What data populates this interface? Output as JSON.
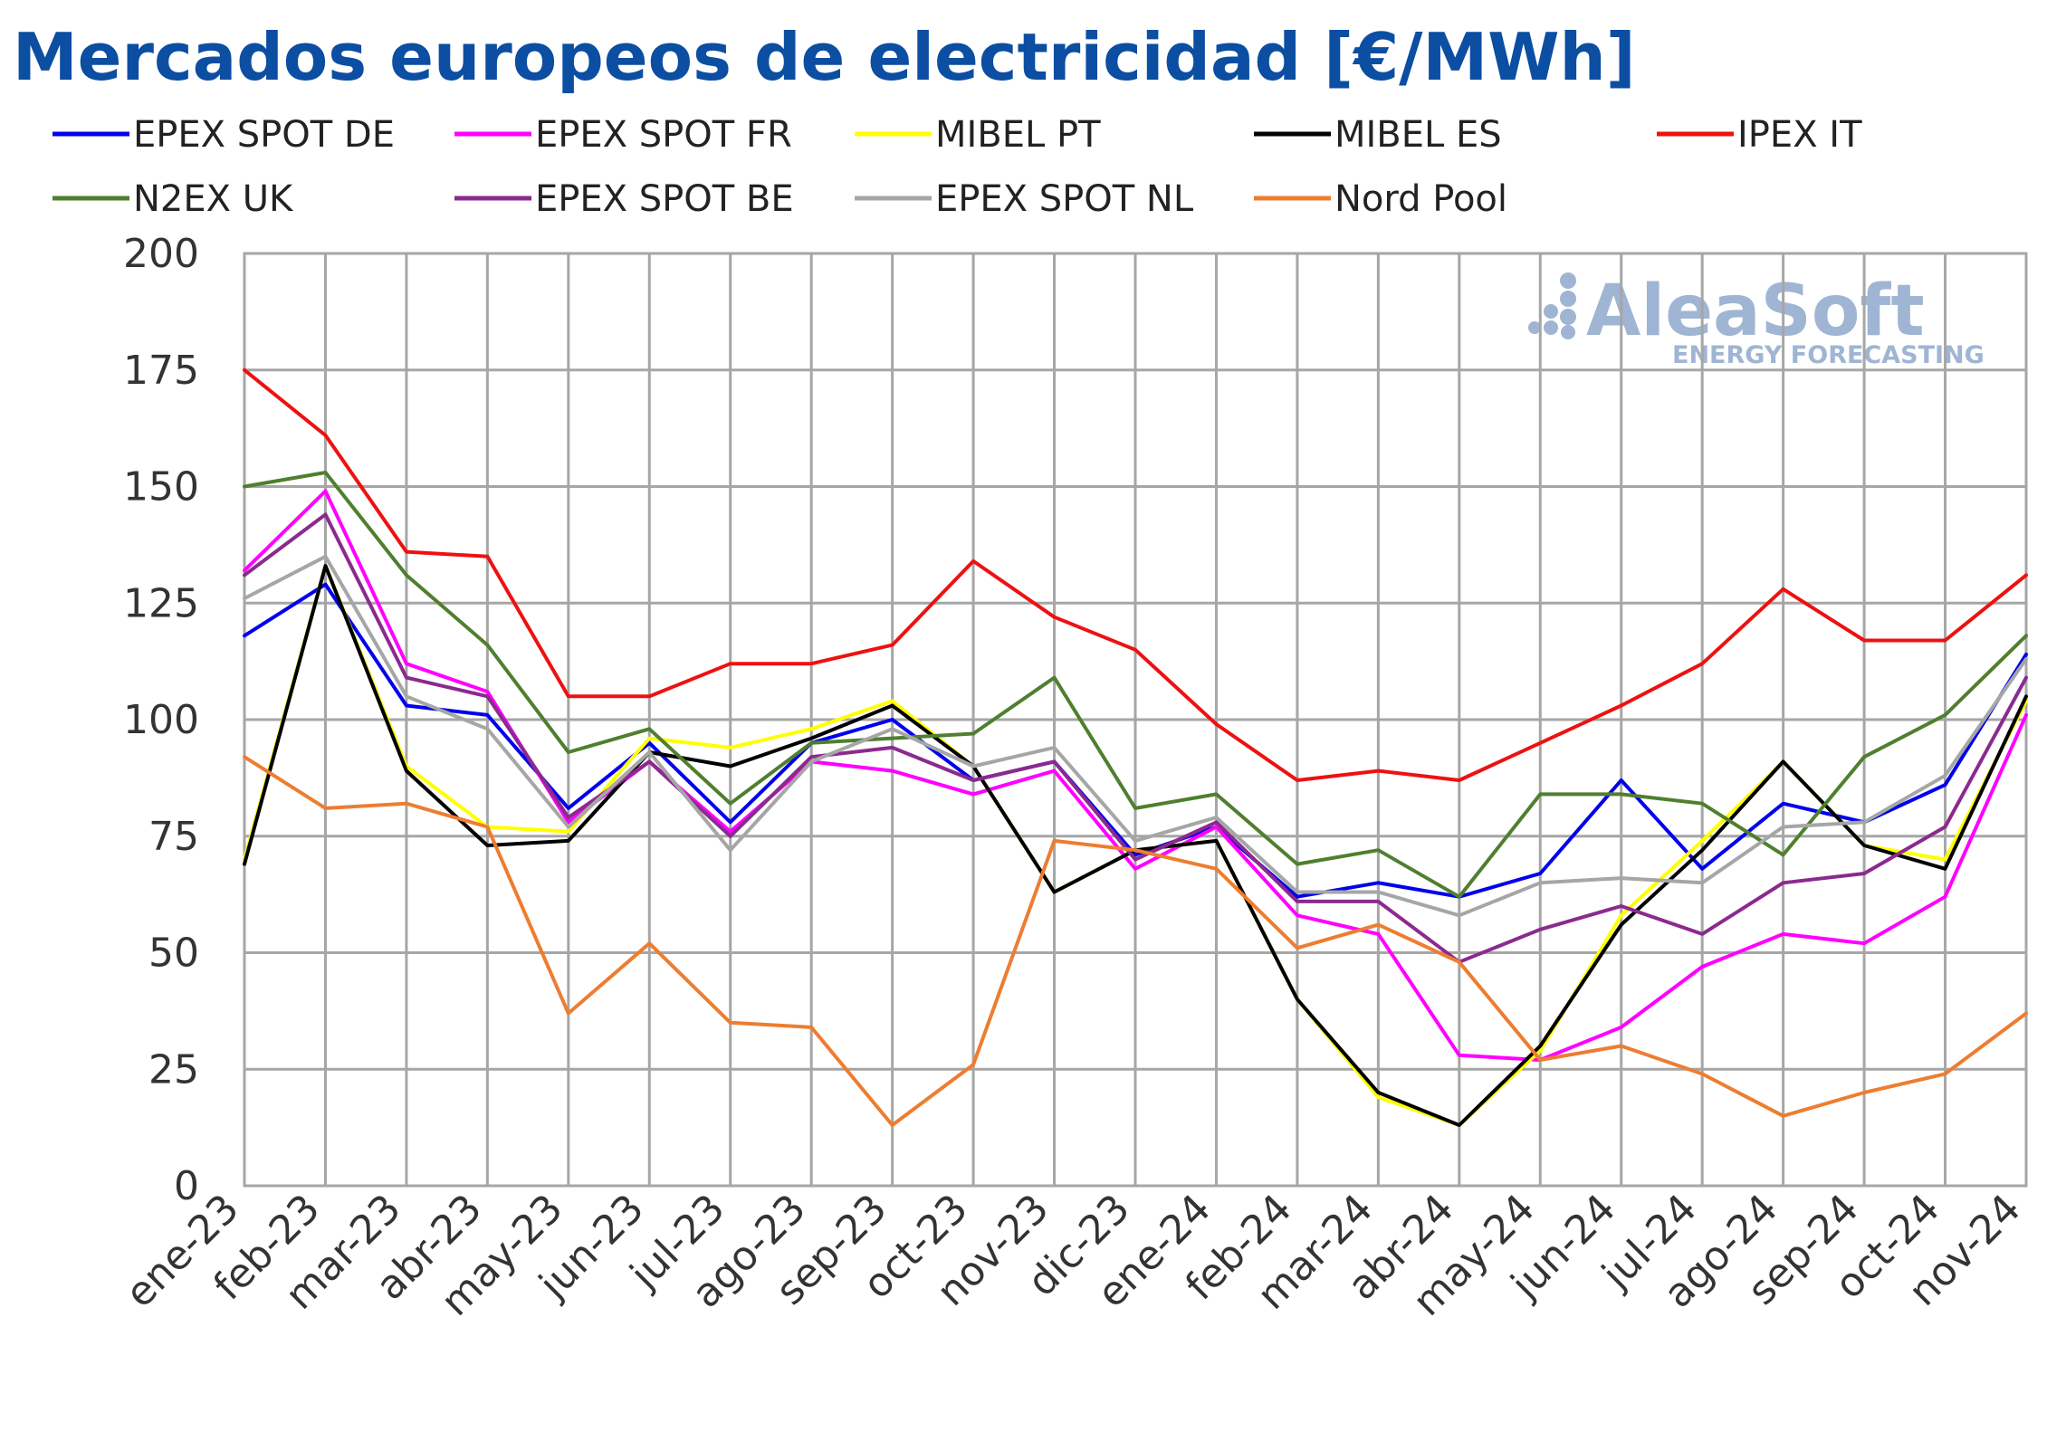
{
  "chart_data": {
    "type": "line",
    "title": "Mercados europeos de electricidad [€/MWh]",
    "categories": [
      "ene-23",
      "feb-23",
      "mar-23",
      "abr-23",
      "may-23",
      "jun-23",
      "jul-23",
      "ago-23",
      "sep-23",
      "oct-23",
      "nov-23",
      "dic-23",
      "ene-24",
      "feb-24",
      "mar-24",
      "abr-24",
      "may-24",
      "jun-24",
      "jul-24",
      "ago-24",
      "sep-24",
      "oct-24",
      "nov-24"
    ],
    "ylim": [
      0,
      200
    ],
    "yticks": [
      "0",
      "25",
      "50",
      "75",
      "100",
      "125",
      "150",
      "175",
      "200"
    ],
    "grid": true,
    "legend_position": "top",
    "series": [
      {
        "name": "EPEX SPOT DE",
        "color": "#0000ee",
        "values": [
          118,
          129,
          103,
          101,
          81,
          95,
          78,
          95,
          100,
          87,
          91,
          71,
          77,
          62,
          65,
          62,
          67,
          87,
          68,
          82,
          78,
          86,
          114
        ]
      },
      {
        "name": "EPEX SPOT FR",
        "color": "#ff00ff",
        "values": [
          132,
          149,
          112,
          106,
          78,
          91,
          76,
          91,
          89,
          84,
          89,
          68,
          77,
          58,
          54,
          28,
          27,
          34,
          47,
          54,
          52,
          62,
          101
        ]
      },
      {
        "name": "MIBEL PT",
        "color": "#ffff00",
        "values": [
          70,
          133,
          90,
          77,
          76,
          96,
          94,
          98,
          104,
          90,
          63,
          72,
          74,
          40,
          19,
          13,
          29,
          58,
          74,
          91,
          73,
          70,
          104
        ]
      },
      {
        "name": "MIBEL ES",
        "color": "#000000",
        "values": [
          69,
          133,
          89,
          73,
          74,
          93,
          90,
          96,
          103,
          90,
          63,
          72,
          74,
          40,
          20,
          13,
          30,
          56,
          72,
          91,
          73,
          68,
          105
        ]
      },
      {
        "name": "IPEX IT",
        "color": "#ee1111",
        "values": [
          175,
          161,
          136,
          135,
          105,
          105,
          112,
          112,
          116,
          134,
          122,
          115,
          99,
          87,
          89,
          87,
          95,
          103,
          112,
          128,
          117,
          117,
          131
        ]
      },
      {
        "name": "N2EX UK",
        "color": "#4f7f2f",
        "values": [
          150,
          153,
          131,
          116,
          93,
          98,
          82,
          95,
          96,
          97,
          109,
          81,
          84,
          69,
          72,
          62,
          84,
          84,
          82,
          71,
          92,
          101,
          118
        ]
      },
      {
        "name": "EPEX SPOT BE",
        "color": "#8b2a8e",
        "values": [
          131,
          144,
          109,
          105,
          79,
          91,
          75,
          92,
          94,
          87,
          91,
          70,
          78,
          61,
          61,
          48,
          55,
          60,
          54,
          65,
          67,
          77,
          109
        ]
      },
      {
        "name": "EPEX SPOT NL",
        "color": "#a6a6a6",
        "values": [
          126,
          135,
          105,
          98,
          77,
          93,
          72,
          91,
          98,
          90,
          94,
          74,
          79,
          63,
          63,
          58,
          65,
          66,
          65,
          77,
          78,
          88,
          113
        ]
      },
      {
        "name": "Nord Pool",
        "color": "#ed7d31",
        "values": [
          92,
          81,
          82,
          77,
          37,
          52,
          35,
          34,
          13,
          26,
          74,
          72,
          68,
          51,
          56,
          48,
          27,
          30,
          24,
          15,
          20,
          24,
          37
        ]
      }
    ]
  },
  "watermark": {
    "brand": "AleaSoft",
    "tagline": "ENERGY FORECASTING",
    "color": "#9fb5d3"
  }
}
